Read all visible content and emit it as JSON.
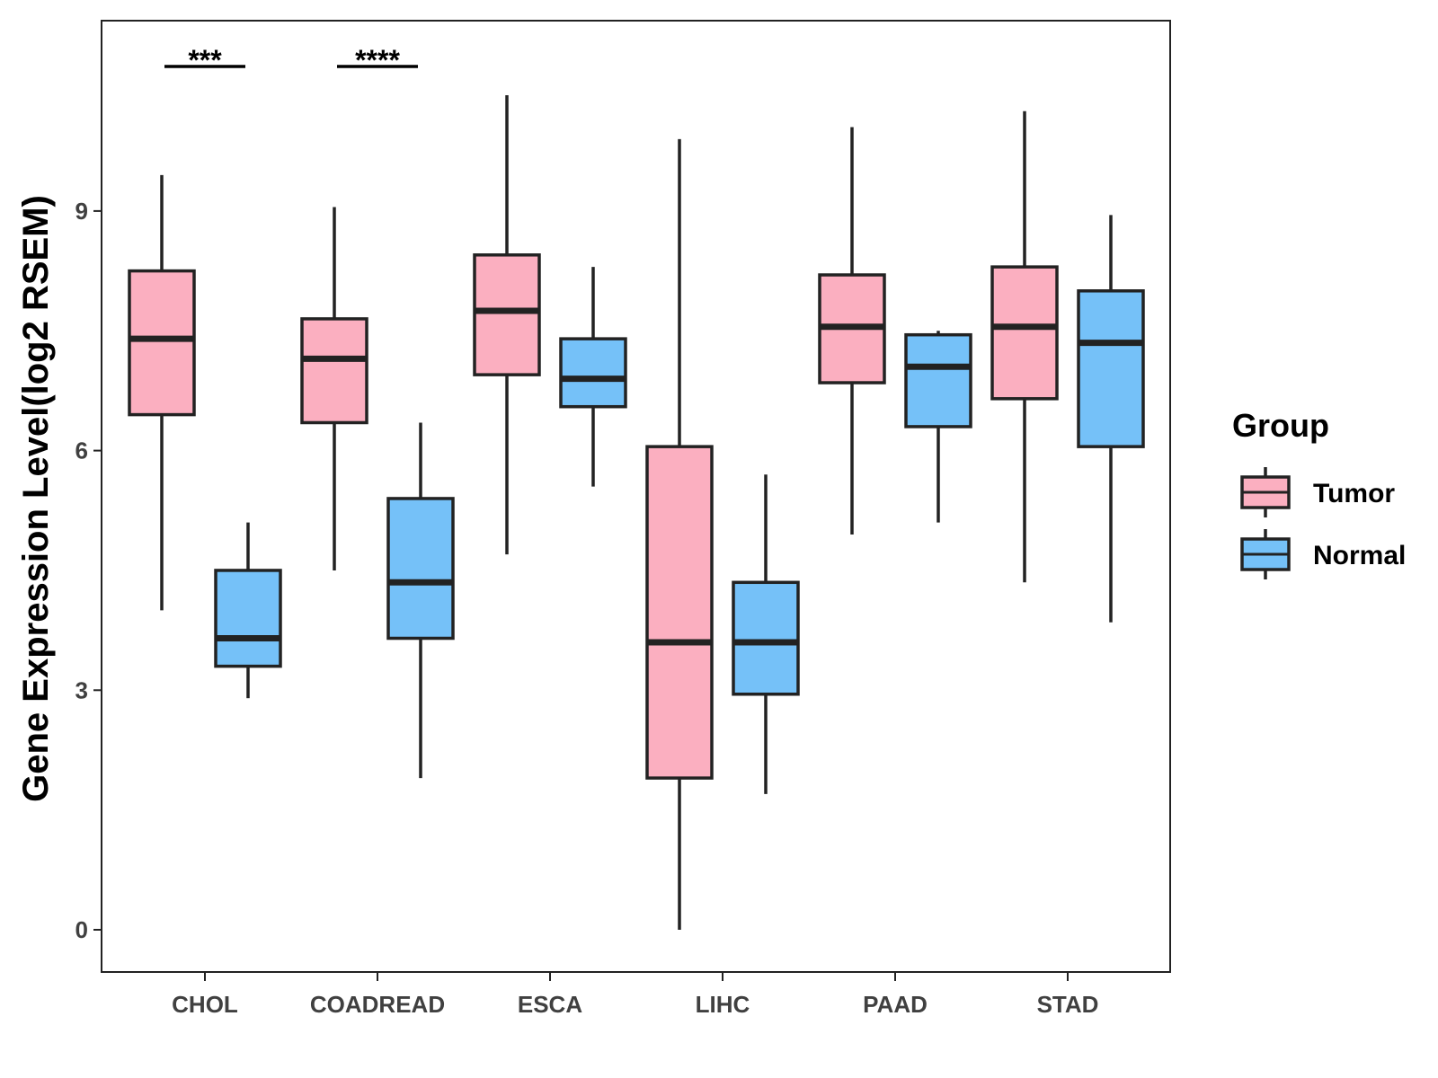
{
  "chart_data": {
    "type": "boxplot",
    "title": "",
    "xlabel": "",
    "ylabel": "Gene Expression Level(log2 RSEM)",
    "ylim": [
      -0.5,
      11.4
    ],
    "yticks": [
      0,
      3,
      6,
      9
    ],
    "categories": [
      "CHOL",
      "COADREAD",
      "ESCA",
      "LIHC",
      "PAAD",
      "STAD"
    ],
    "legend": {
      "title": "Group",
      "position": "right"
    },
    "series": [
      {
        "name": "Tumor",
        "color": "#FBAFC0",
        "boxes": [
          {
            "category": "CHOL",
            "min": 4.0,
            "q1": 6.45,
            "median": 7.4,
            "q3": 8.25,
            "max": 9.45
          },
          {
            "category": "COADREAD",
            "min": 4.5,
            "q1": 6.35,
            "median": 7.15,
            "q3": 7.65,
            "max": 9.05
          },
          {
            "category": "ESCA",
            "min": 4.7,
            "q1": 6.95,
            "median": 7.75,
            "q3": 8.45,
            "max": 10.45
          },
          {
            "category": "LIHC",
            "min": 0.0,
            "q1": 1.9,
            "median": 3.6,
            "q3": 6.05,
            "max": 9.9
          },
          {
            "category": "PAAD",
            "min": 4.95,
            "q1": 6.85,
            "median": 7.55,
            "q3": 8.2,
            "max": 10.05
          },
          {
            "category": "STAD",
            "min": 4.35,
            "q1": 6.65,
            "median": 7.55,
            "q3": 8.3,
            "max": 10.25
          }
        ]
      },
      {
        "name": "Normal",
        "color": "#75C1F8",
        "boxes": [
          {
            "category": "CHOL",
            "min": 2.9,
            "q1": 3.3,
            "median": 3.65,
            "q3": 4.5,
            "max": 5.1
          },
          {
            "category": "COADREAD",
            "min": 1.9,
            "q1": 3.65,
            "median": 4.35,
            "q3": 5.4,
            "max": 6.35
          },
          {
            "category": "ESCA",
            "min": 5.55,
            "q1": 6.55,
            "median": 6.9,
            "q3": 7.4,
            "max": 8.3
          },
          {
            "category": "LIHC",
            "min": 1.7,
            "q1": 2.95,
            "median": 3.6,
            "q3": 4.35,
            "max": 5.7
          },
          {
            "category": "PAAD",
            "min": 5.1,
            "q1": 6.3,
            "median": 7.05,
            "q3": 7.45,
            "max": 7.5
          },
          {
            "category": "STAD",
            "min": 3.85,
            "q1": 6.05,
            "median": 7.35,
            "q3": 8.0,
            "max": 8.95
          }
        ]
      }
    ],
    "annotations": [
      {
        "category": "CHOL",
        "text": "***"
      },
      {
        "category": "COADREAD",
        "text": "****"
      }
    ]
  }
}
